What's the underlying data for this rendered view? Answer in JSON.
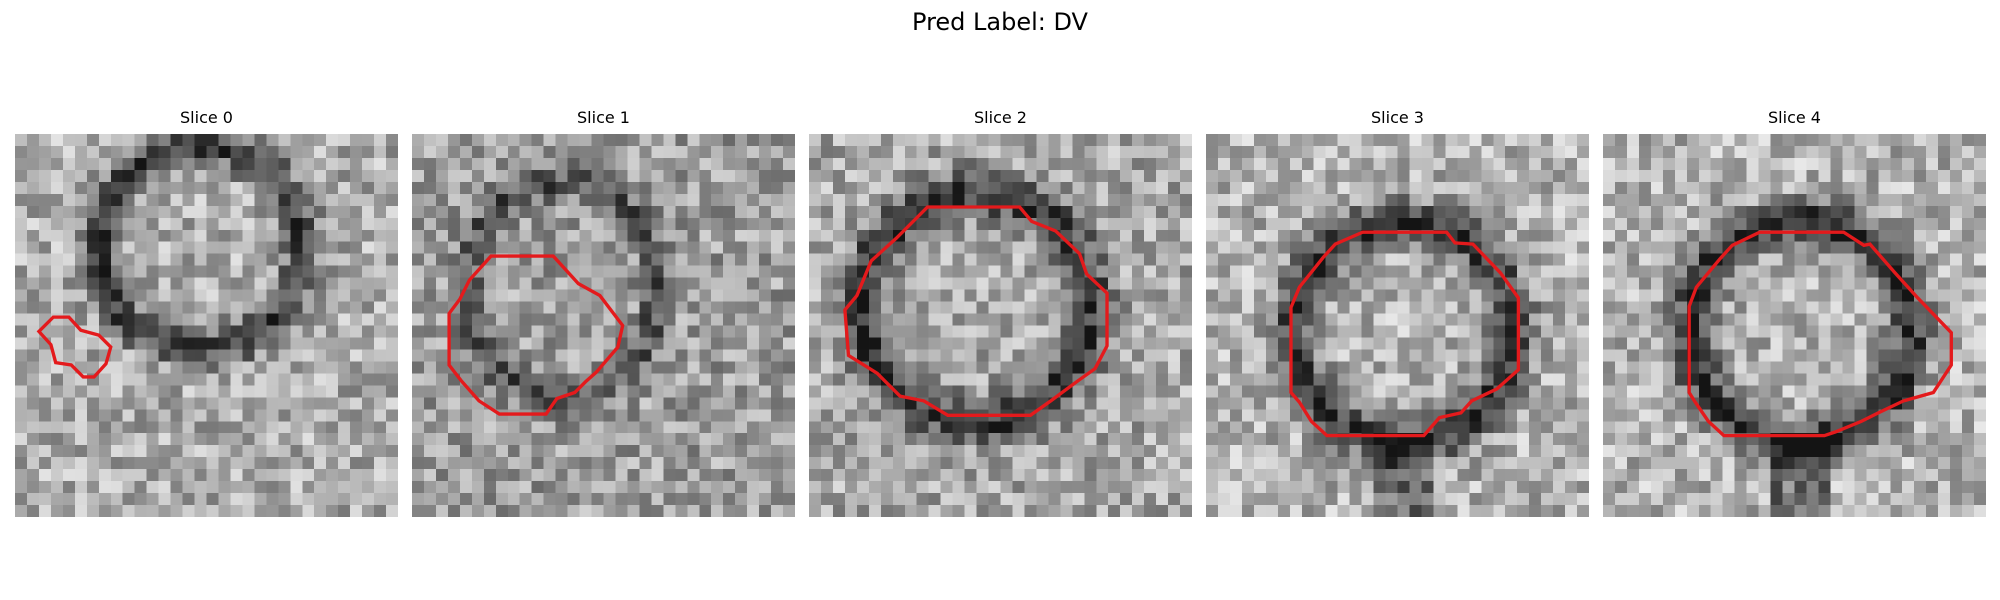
{
  "figure": {
    "title": "Pred Label: DV"
  },
  "panels": [
    {
      "title": "Slice 0"
    },
    {
      "title": "Slice 1"
    },
    {
      "title": "Slice 2"
    },
    {
      "title": "Slice 3"
    },
    {
      "title": "Slice 4"
    }
  ],
  "colors": {
    "contour": "#e41a1c",
    "background": "#ffffff"
  }
}
